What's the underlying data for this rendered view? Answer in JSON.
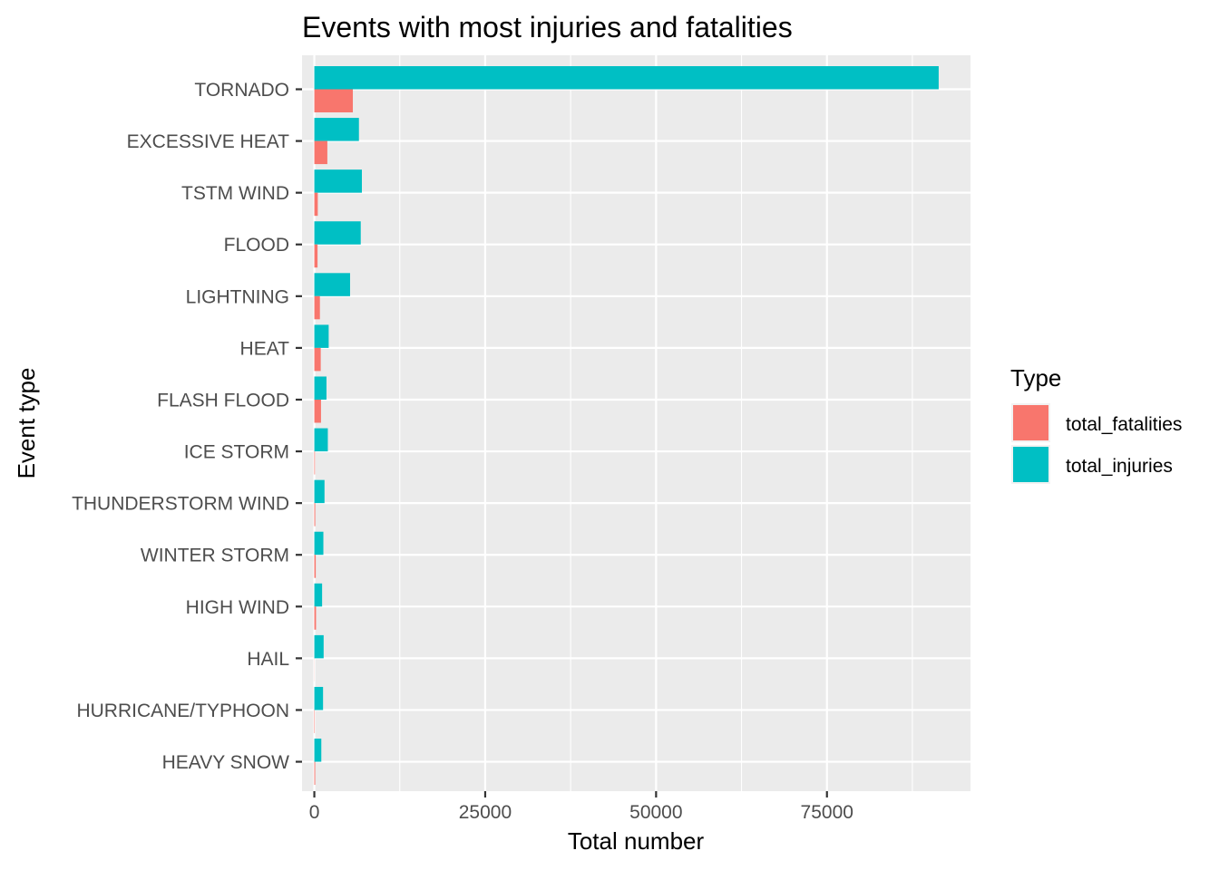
{
  "chart_data": {
    "type": "bar",
    "orientation": "horizontal",
    "title": "Events with most injuries and fatalities",
    "xlabel": "Total number",
    "ylabel": "Event type",
    "xlim": [
      -1800,
      96000
    ],
    "x_ticks": [
      0,
      25000,
      50000,
      75000
    ],
    "x_tick_labels": [
      "0",
      "25000",
      "50000",
      "75000"
    ],
    "grid": true,
    "legend": {
      "title": "Type",
      "position": "right"
    },
    "categories": [
      "TORNADO",
      "EXCESSIVE HEAT",
      "TSTM WIND",
      "FLOOD",
      "LIGHTNING",
      "HEAT",
      "FLASH FLOOD",
      "ICE STORM",
      "THUNDERSTORM WIND",
      "WINTER STORM",
      "HIGH WIND",
      "HAIL",
      "HURRICANE/TYPHOON",
      "HEAVY SNOW"
    ],
    "series": [
      {
        "name": "total_fatalities",
        "color": "#F8766D",
        "values": [
          5633,
          1903,
          504,
          470,
          816,
          937,
          978,
          89,
          133,
          206,
          248,
          15,
          64,
          127
        ]
      },
      {
        "name": "total_injuries",
        "color": "#00BFC4",
        "values": [
          91346,
          6525,
          6957,
          6789,
          5230,
          2100,
          1777,
          1975,
          1488,
          1321,
          1137,
          1361,
          1275,
          1021
        ]
      }
    ]
  }
}
